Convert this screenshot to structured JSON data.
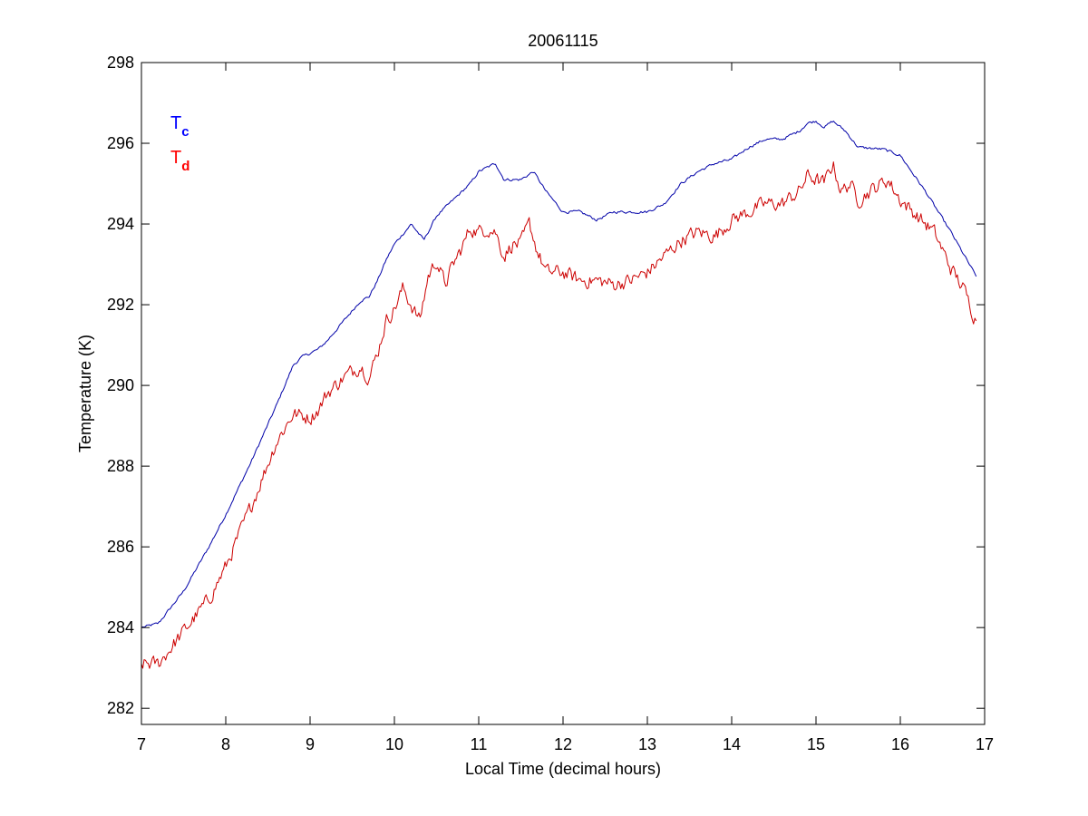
{
  "chart_data": {
    "type": "line",
    "title": "20061115",
    "xlabel": "Local Time (decimal hours)",
    "ylabel": "Temperature (K)",
    "xlim": [
      7,
      17
    ],
    "ylim": [
      281.6,
      298
    ],
    "xticks": [
      7,
      8,
      9,
      10,
      11,
      12,
      13,
      14,
      15,
      16,
      17
    ],
    "yticks": [
      282,
      284,
      286,
      288,
      290,
      292,
      294,
      296,
      298
    ],
    "xtick_labels": [
      "7",
      "8",
      "9",
      "10",
      "11",
      "12",
      "13",
      "14",
      "15",
      "16",
      "17"
    ],
    "ytick_labels": [
      "282",
      "284",
      "286",
      "288",
      "290",
      "292",
      "294",
      "296",
      "298"
    ],
    "grid": false,
    "legend_position": "top-left",
    "series": [
      {
        "name": "T",
        "subscript": "c",
        "color": "#0000a8",
        "legend_color": "#0000ff",
        "noise": 0.03,
        "x": [
          7.0,
          7.2,
          7.5,
          7.8,
          8.0,
          8.3,
          8.6,
          8.8,
          8.9,
          9.0,
          9.1,
          9.2,
          9.4,
          9.6,
          9.7,
          9.8,
          9.9,
          10.0,
          10.2,
          10.35,
          10.5,
          10.65,
          10.8,
          10.9,
          11.0,
          11.2,
          11.3,
          11.5,
          11.65,
          11.8,
          12.0,
          12.2,
          12.4,
          12.6,
          12.8,
          13.0,
          13.2,
          13.4,
          13.6,
          13.8,
          14.0,
          14.2,
          14.4,
          14.6,
          14.8,
          14.9,
          15.0,
          15.1,
          15.2,
          15.35,
          15.5,
          15.8,
          16.0,
          16.3,
          16.6,
          16.9
        ],
        "y": [
          284.0,
          284.1,
          284.9,
          286.0,
          286.8,
          288.1,
          289.5,
          290.5,
          290.7,
          290.8,
          290.9,
          291.1,
          291.6,
          292.1,
          292.2,
          292.6,
          293.1,
          293.5,
          294.0,
          293.6,
          294.2,
          294.5,
          294.8,
          295.0,
          295.3,
          295.5,
          295.1,
          295.1,
          295.3,
          294.8,
          294.3,
          294.3,
          294.1,
          294.3,
          294.3,
          294.3,
          294.5,
          295.0,
          295.3,
          295.5,
          295.6,
          295.9,
          296.1,
          296.1,
          296.3,
          296.5,
          296.55,
          296.4,
          296.55,
          296.3,
          295.9,
          295.85,
          295.7,
          294.8,
          293.8,
          292.7
        ]
      },
      {
        "name": "T",
        "subscript": "d",
        "color": "#cc0000",
        "legend_color": "#ff0000",
        "noise": 0.16,
        "x": [
          7.0,
          7.2,
          7.5,
          7.8,
          8.0,
          8.3,
          8.6,
          8.8,
          9.0,
          9.1,
          9.2,
          9.4,
          9.6,
          9.7,
          9.8,
          9.9,
          10.0,
          10.1,
          10.2,
          10.3,
          10.4,
          10.5,
          10.6,
          10.7,
          10.8,
          10.9,
          11.0,
          11.1,
          11.2,
          11.3,
          11.4,
          11.5,
          11.6,
          11.7,
          11.8,
          12.0,
          12.2,
          12.4,
          12.6,
          12.8,
          13.0,
          13.2,
          13.4,
          13.6,
          13.8,
          14.0,
          14.2,
          14.4,
          14.6,
          14.8,
          14.9,
          15.0,
          15.1,
          15.2,
          15.3,
          15.4,
          15.5,
          15.7,
          15.85,
          16.0,
          16.2,
          16.4,
          16.6,
          16.75,
          16.9
        ],
        "y": [
          283.1,
          283.1,
          283.9,
          284.7,
          285.5,
          287.0,
          288.6,
          289.3,
          289.2,
          289.4,
          289.8,
          290.2,
          290.5,
          290.2,
          290.8,
          291.6,
          291.9,
          292.4,
          292.0,
          291.6,
          292.7,
          293.1,
          292.5,
          293.0,
          293.4,
          293.9,
          293.8,
          293.9,
          293.8,
          293.2,
          293.5,
          293.5,
          294.0,
          293.3,
          292.8,
          292.8,
          292.6,
          292.6,
          292.5,
          292.6,
          292.8,
          293.2,
          293.6,
          293.8,
          293.7,
          294.1,
          294.3,
          294.5,
          294.5,
          294.8,
          295.2,
          295.1,
          295.0,
          295.5,
          294.8,
          295.0,
          294.6,
          294.9,
          295.1,
          294.6,
          294.2,
          293.8,
          292.9,
          292.4,
          291.6
        ]
      }
    ]
  }
}
